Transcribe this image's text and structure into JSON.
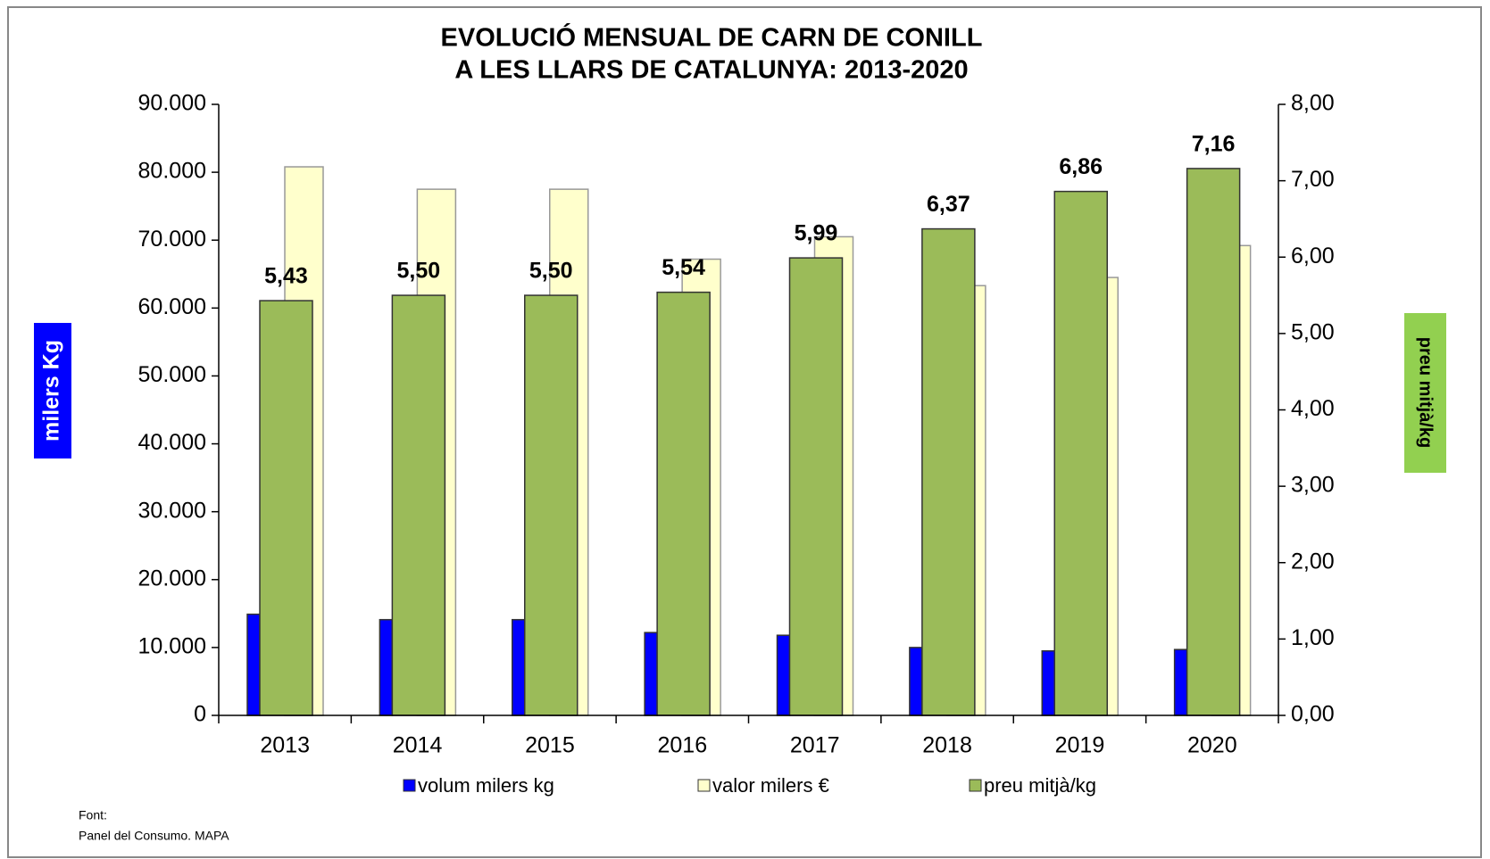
{
  "chart_data": {
    "type": "bar",
    "title": [
      "EVOLUCIÓ MENSUAL DE CARN DE CONILL",
      "A LES LLARS DE CATALUNYA: 2013-2020"
    ],
    "y_label": "milers Kg",
    "y2_label": "preu mitjà/kg",
    "categories": [
      "2013",
      "2014",
      "2015",
      "2016",
      "2017",
      "2018",
      "2019",
      "2020"
    ],
    "series": [
      {
        "name": "volum milers kg",
        "color": "#0000ff",
        "values": [
          14900,
          14100,
          14100,
          12200,
          11800,
          10000,
          9500,
          9700
        ]
      },
      {
        "name": "valor milers €",
        "color": "#ffffcc",
        "values": [
          80800,
          77500,
          77500,
          67200,
          70500,
          63300,
          64500,
          69200
        ]
      },
      {
        "name": "preu mitjà/kg",
        "color": "#9bbb59",
        "axis": "y2",
        "values": [
          5.43,
          5.5,
          5.5,
          5.54,
          5.99,
          6.37,
          6.86,
          7.16
        ],
        "value_labels": [
          "5,43",
          "5,50",
          "5,50",
          "5,54",
          "5,99",
          "6,37",
          "6,86",
          "7,16"
        ]
      }
    ],
    "ylim": [
      0,
      90000
    ],
    "yticks": [
      0,
      {
        "value": 10000,
        "label": "10.000"
      },
      {
        "value": 20000,
        "label": "20.000"
      },
      {
        "value": 30000,
        "label": "30.000"
      },
      {
        "value": 40000,
        "label": "40.000"
      },
      {
        "value": 50000,
        "label": "50.000"
      },
      {
        "value": 60000,
        "label": "60.000"
      },
      {
        "value": 70000,
        "label": "70.000"
      },
      {
        "value": 80000,
        "label": "80.000"
      },
      {
        "value": 90000,
        "label": "90.000"
      }
    ],
    "y2lim": [
      0,
      8
    ],
    "y2ticks": [
      {
        "value": 0,
        "label": "0,00"
      },
      {
        "value": 1,
        "label": "1,00"
      },
      {
        "value": 2,
        "label": "2,00"
      },
      {
        "value": 3,
        "label": "3,00"
      },
      {
        "value": 4,
        "label": "4,00"
      },
      {
        "value": 5,
        "label": "5,00"
      },
      {
        "value": 6,
        "label": "6,00"
      },
      {
        "value": 7,
        "label": "7,00"
      },
      {
        "value": 8,
        "label": "8,00"
      }
    ],
    "legend": "bottom",
    "grid": false,
    "source": [
      "Font:",
      "Panel del Consumo. MAPA"
    ]
  }
}
